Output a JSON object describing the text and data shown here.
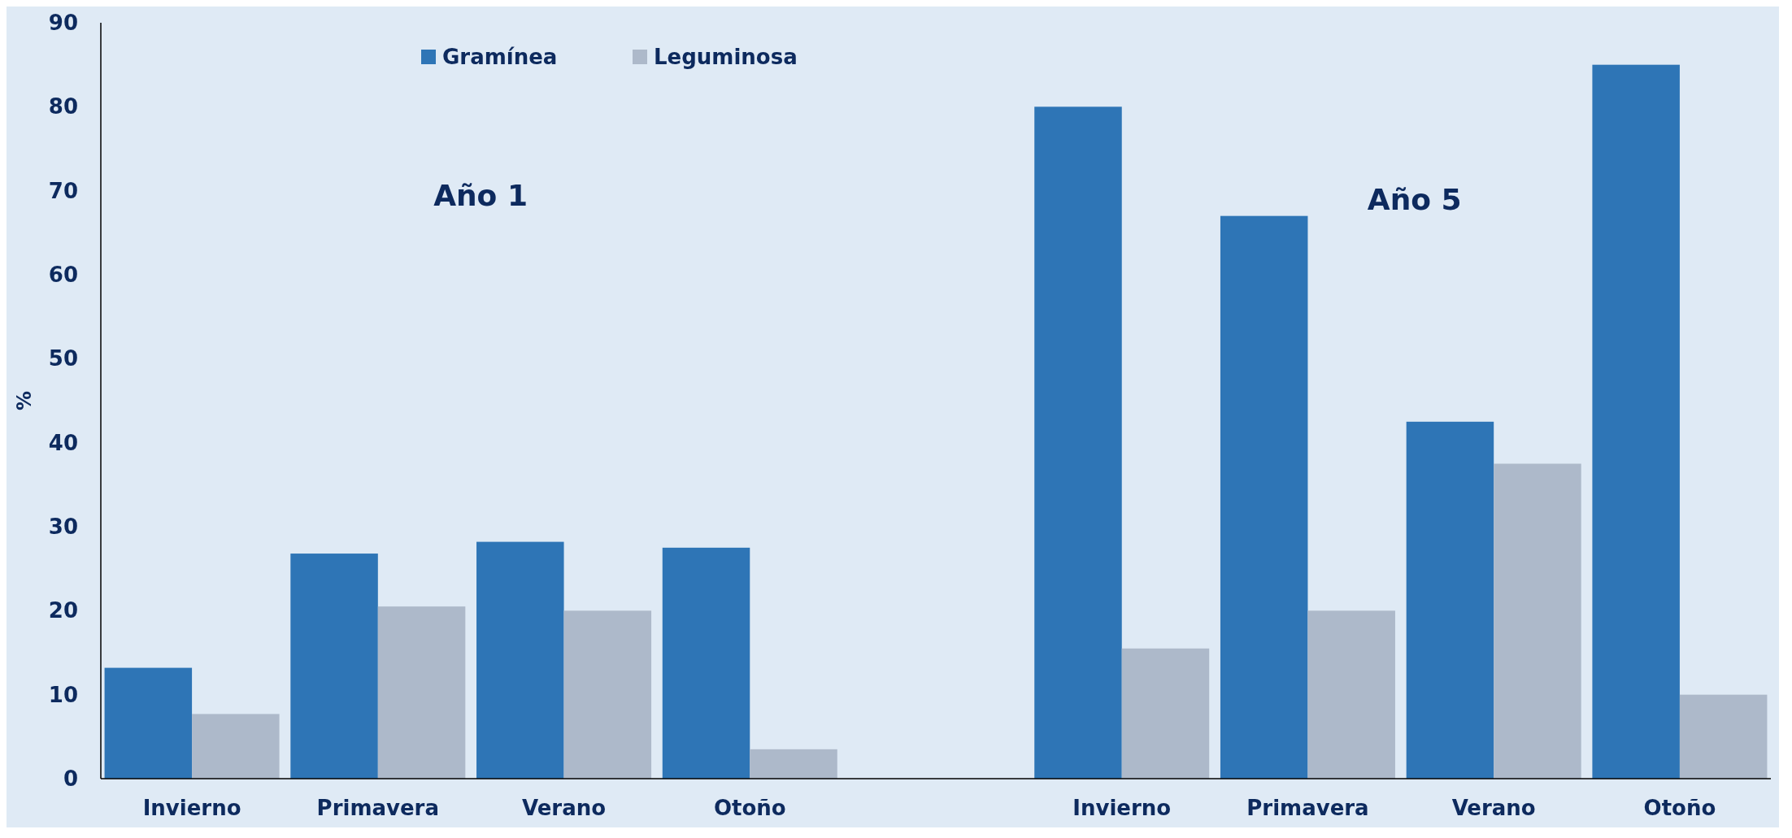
{
  "chart_data": {
    "type": "bar",
    "ylabel": "%",
    "categories": [
      "Invierno",
      "Primavera",
      "Verano",
      "Otoño",
      null,
      "Invierno",
      "Primavera",
      "Verano",
      "Otoño"
    ],
    "series": [
      {
        "name": "Gramínea",
        "color": "#2e75b6",
        "values": [
          13.2,
          26.8,
          28.2,
          27.5,
          null,
          80,
          67,
          42.5,
          85
        ]
      },
      {
        "name": "Leguminosa",
        "color": "#adb9ca",
        "values": [
          7.7,
          20.5,
          20,
          3.5,
          null,
          15.5,
          20,
          37.5,
          10
        ]
      }
    ],
    "ylim": [
      0,
      90
    ],
    "yticks": [
      0,
      10,
      20,
      30,
      40,
      50,
      60,
      70,
      80,
      90
    ],
    "annotations": [
      "Año 1",
      "Año 5"
    ],
    "grid": false,
    "legend": "top"
  }
}
